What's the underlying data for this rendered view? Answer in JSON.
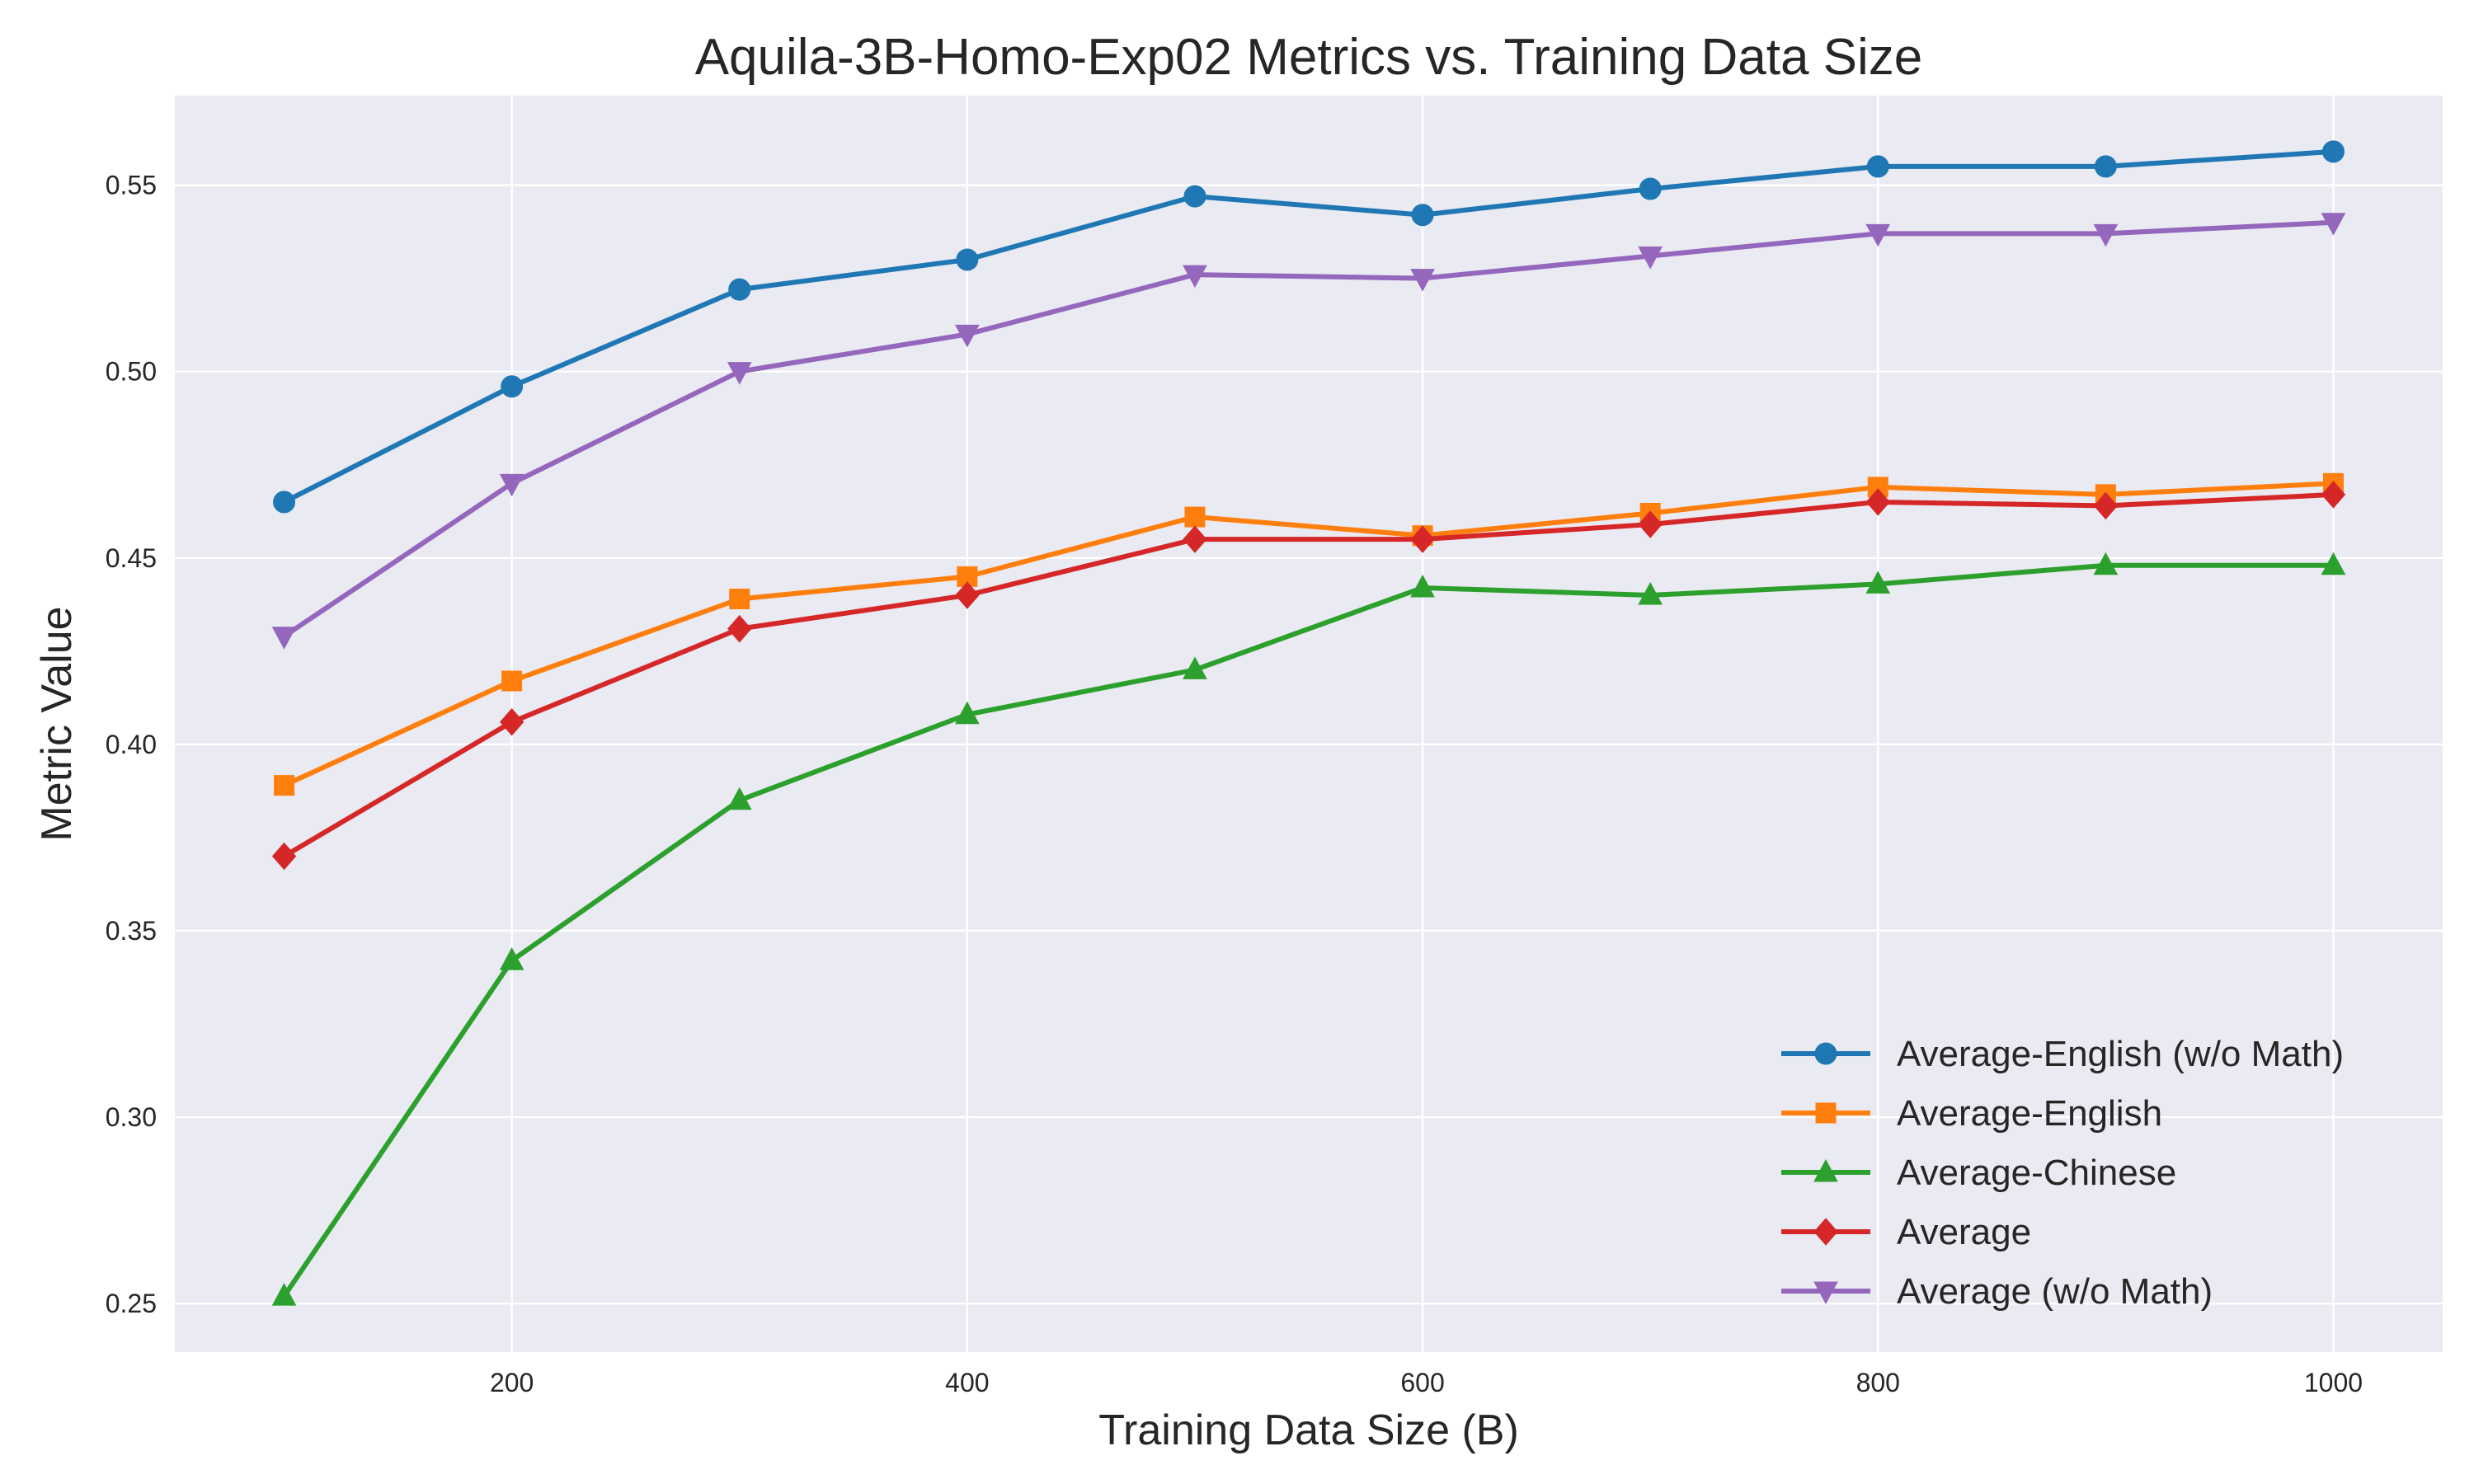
{
  "chart_data": {
    "type": "line",
    "title": "Aquila-3B-Homo-Exp02 Metrics vs. Training Data Size",
    "xlabel": "Training Data Size (B)",
    "ylabel": "Metric Value",
    "x": [
      100,
      200,
      300,
      400,
      500,
      600,
      700,
      800,
      900,
      1000
    ],
    "xlim": [
      52,
      1048
    ],
    "ylim": [
      0.237,
      0.574
    ],
    "xticks": [
      200,
      400,
      600,
      800,
      1000
    ],
    "xtick_labels": [
      "200",
      "400",
      "600",
      "800",
      "1000"
    ],
    "yticks": [
      0.25,
      0.3,
      0.35,
      0.4,
      0.45,
      0.5,
      0.55
    ],
    "ytick_labels": [
      "0.25",
      "0.30",
      "0.35",
      "0.40",
      "0.45",
      "0.50",
      "0.55"
    ],
    "grid": true,
    "legend_position": "bottom-right",
    "series": [
      {
        "name": "Average-English (w/o Math)",
        "color": "#1f77b4",
        "marker": "circle",
        "values": [
          0.465,
          0.496,
          0.522,
          0.53,
          0.547,
          0.542,
          0.549,
          0.555,
          0.555,
          0.559
        ]
      },
      {
        "name": "Average-English",
        "color": "#ff7f0e",
        "marker": "square",
        "values": [
          0.389,
          0.417,
          0.439,
          0.445,
          0.461,
          0.456,
          0.462,
          0.469,
          0.467,
          0.47
        ]
      },
      {
        "name": "Average-Chinese",
        "color": "#2ca02c",
        "marker": "triangle-up",
        "values": [
          0.252,
          0.342,
          0.385,
          0.408,
          0.42,
          0.442,
          0.44,
          0.443,
          0.448,
          0.448
        ]
      },
      {
        "name": "Average",
        "color": "#d62728",
        "marker": "diamond",
        "values": [
          0.37,
          0.406,
          0.431,
          0.44,
          0.455,
          0.455,
          0.459,
          0.465,
          0.464,
          0.467
        ]
      },
      {
        "name": "Average (w/o Math)",
        "color": "#9467bd",
        "marker": "triangle-down",
        "values": [
          0.429,
          0.47,
          0.5,
          0.51,
          0.526,
          0.525,
          0.531,
          0.537,
          0.537,
          0.54
        ]
      }
    ]
  }
}
